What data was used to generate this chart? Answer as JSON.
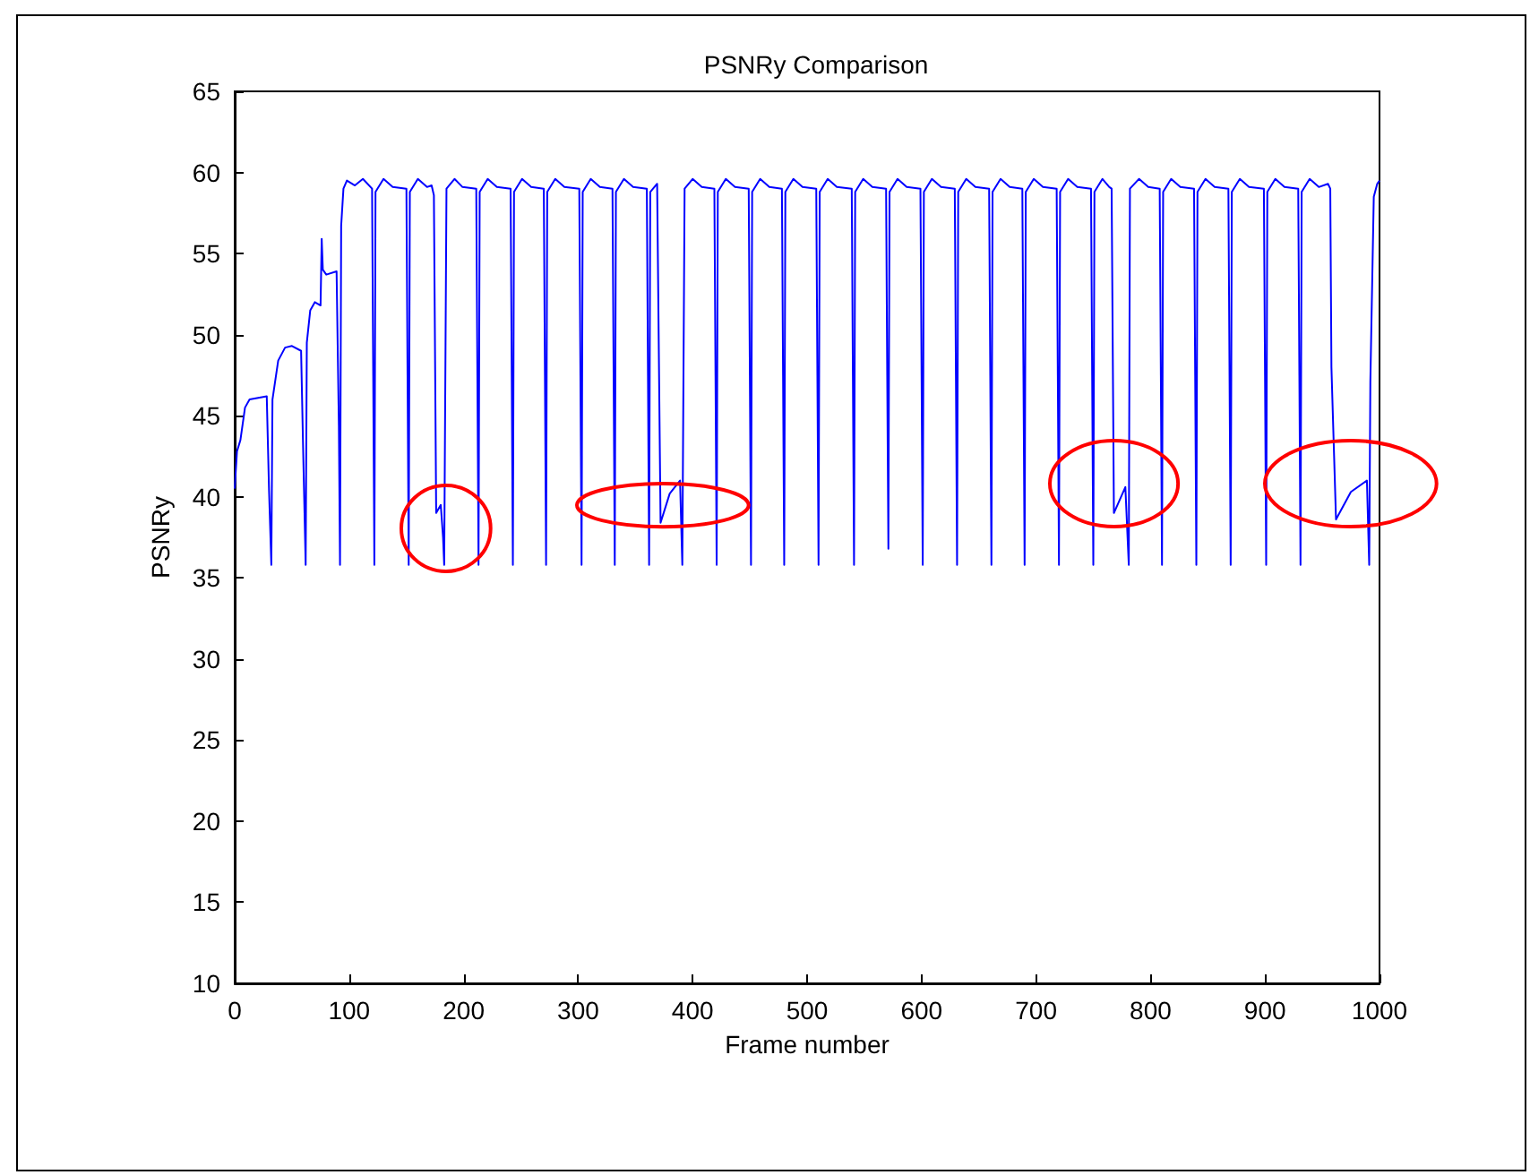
{
  "chart_data": {
    "type": "line",
    "title": "PSNRy Comparison",
    "xlabel": "Frame number",
    "ylabel": "PSNRy",
    "xlim": [
      0,
      1000
    ],
    "xticks": [
      0,
      100,
      200,
      300,
      400,
      500,
      600,
      700,
      800,
      900,
      1000
    ],
    "ylim": [
      10,
      65
    ],
    "yticks": [
      10,
      15,
      20,
      25,
      30,
      35,
      40,
      45,
      50,
      55,
      60,
      65
    ],
    "marker": "none",
    "line_style": "solid",
    "series": [
      {
        "color": "#0000ff",
        "x": [
          0,
          2,
          5,
          9,
          13,
          28,
          30,
          32,
          33,
          38,
          44,
          50,
          58,
          60,
          62,
          63,
          66,
          70,
          75,
          76,
          77,
          80,
          89,
          91,
          92,
          93,
          95,
          98,
          105,
          112,
          120,
          121,
          122,
          123,
          130,
          138,
          150,
          151,
          152,
          153,
          160,
          168,
          172,
          174,
          176,
          180,
          182,
          183,
          185,
          192,
          199,
          211,
          212,
          213,
          214,
          221,
          229,
          241,
          242,
          243,
          244,
          251,
          259,
          270,
          271,
          272,
          273,
          280,
          288,
          301,
          302,
          303,
          304,
          311,
          319,
          330,
          331,
          332,
          333,
          340,
          348,
          360,
          361,
          362,
          363,
          369,
          372,
          380,
          389,
          391,
          393,
          400,
          408,
          419,
          420,
          421,
          422,
          429,
          437,
          449,
          450,
          451,
          452,
          459,
          467,
          478,
          479,
          480,
          481,
          488,
          496,
          508,
          509,
          510,
          511,
          518,
          526,
          539,
          540,
          541,
          542,
          549,
          557,
          569,
          570,
          571,
          572,
          579,
          587,
          599,
          600,
          601,
          602,
          609,
          617,
          629,
          630,
          631,
          632,
          639,
          647,
          659,
          660,
          661,
          662,
          669,
          677,
          688,
          689,
          690,
          691,
          698,
          706,
          718,
          719,
          720,
          721,
          728,
          736,
          748,
          749,
          750,
          751,
          758,
          764,
          766,
          767,
          768,
          778,
          781,
          782,
          790,
          798,
          808,
          809,
          810,
          811,
          818,
          826,
          838,
          839,
          840,
          841,
          848,
          856,
          868,
          869,
          870,
          871,
          878,
          886,
          899,
          900,
          901,
          902,
          909,
          917,
          929,
          930,
          931,
          932,
          939,
          947,
          955,
          957,
          958,
          962,
          975,
          989,
          991,
          992,
          995,
          998,
          1000
        ],
        "values": [
          40.5,
          42.8,
          43.5,
          45.5,
          46,
          46.2,
          40.4,
          35.8,
          46,
          48.4,
          49.2,
          49.3,
          49,
          42.2,
          35.8,
          49.5,
          51.5,
          52,
          51.8,
          55.9,
          54,
          53.7,
          53.9,
          44.4,
          35.8,
          56.7,
          59,
          59.5,
          59.2,
          59.6,
          59.0,
          47.5,
          35.8,
          58.8,
          59.6,
          59.1,
          59.0,
          47.5,
          35.8,
          58.8,
          59.6,
          59.1,
          59.2,
          58.6,
          39.0,
          39.5,
          37.5,
          35.8,
          59.0,
          59.6,
          59.1,
          59.0,
          47.5,
          35.8,
          58.8,
          59.6,
          59.1,
          59.0,
          47.5,
          35.8,
          58.8,
          59.6,
          59.1,
          59.0,
          47.5,
          35.8,
          58.8,
          59.6,
          59.1,
          59.0,
          47.5,
          35.8,
          58.8,
          59.6,
          59.1,
          59.0,
          47.5,
          35.8,
          58.8,
          59.6,
          59.1,
          59.0,
          47.5,
          35.8,
          58.8,
          59.3,
          38.4,
          40.2,
          41.0,
          35.8,
          59.0,
          59.6,
          59.1,
          59.0,
          47.5,
          35.8,
          58.8,
          59.6,
          59.1,
          59.0,
          47.5,
          35.8,
          58.8,
          59.6,
          59.1,
          59.0,
          47.5,
          35.8,
          58.8,
          59.6,
          59.1,
          59.0,
          47.5,
          35.8,
          58.8,
          59.6,
          59.1,
          59.0,
          47.5,
          35.8,
          58.8,
          59.6,
          59.1,
          59.0,
          47.5,
          36.8,
          58.8,
          59.6,
          59.1,
          59.0,
          47.5,
          35.8,
          58.8,
          59.6,
          59.1,
          59.0,
          47.5,
          35.8,
          58.8,
          59.6,
          59.1,
          59.0,
          47.5,
          35.8,
          58.8,
          59.6,
          59.1,
          59.0,
          47.5,
          35.8,
          58.8,
          59.6,
          59.1,
          59.0,
          47.5,
          35.8,
          58.8,
          59.6,
          59.1,
          59.0,
          47.5,
          35.8,
          58.8,
          59.6,
          59.1,
          59.0,
          48.9,
          39.0,
          40.6,
          35.8,
          59.0,
          59.6,
          59.1,
          59.0,
          47.5,
          35.8,
          58.8,
          59.6,
          59.1,
          59.0,
          47.5,
          35.8,
          58.8,
          59.6,
          59.1,
          59.0,
          47.5,
          35.8,
          58.8,
          59.6,
          59.1,
          59.0,
          47.5,
          35.8,
          58.8,
          59.6,
          59.1,
          59.0,
          47.5,
          35.8,
          58.8,
          59.6,
          59.1,
          59.3,
          59.0,
          48.0,
          38.6,
          40.3,
          41.0,
          35.8,
          47.1,
          58.5,
          59.3,
          59.5
        ]
      }
    ]
  }
}
